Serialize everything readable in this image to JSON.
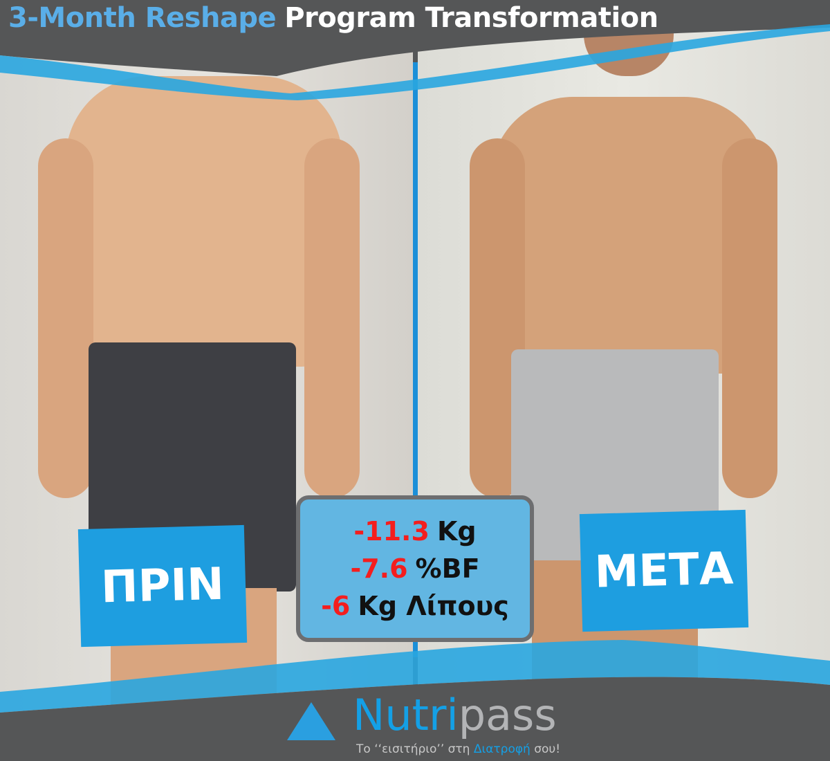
{
  "header": {
    "title_highlight": "3-Month Reshape",
    "title_rest": "Program Transformation"
  },
  "before": {
    "label": "ΠΡΙΝ"
  },
  "after": {
    "label": "ΜΕΤΑ"
  },
  "stats": [
    {
      "value": "-11.3",
      "unit": "Kg"
    },
    {
      "value": "-7.6",
      "unit": "%BF"
    },
    {
      "value": "-6",
      "unit": "Kg Λίπους"
    }
  ],
  "brand": {
    "name_part1": "Nutri",
    "name_part2": "pass",
    "tagline_before": "Το ‘‘εισιτήριο’’ στη ",
    "tagline_highlight": "Διατροφή",
    "tagline_after": " σου!"
  },
  "colors": {
    "accent": "#1e9ee0",
    "band": "#555657",
    "negative": "#f41e1e",
    "stats_box": "#62b6e2"
  }
}
